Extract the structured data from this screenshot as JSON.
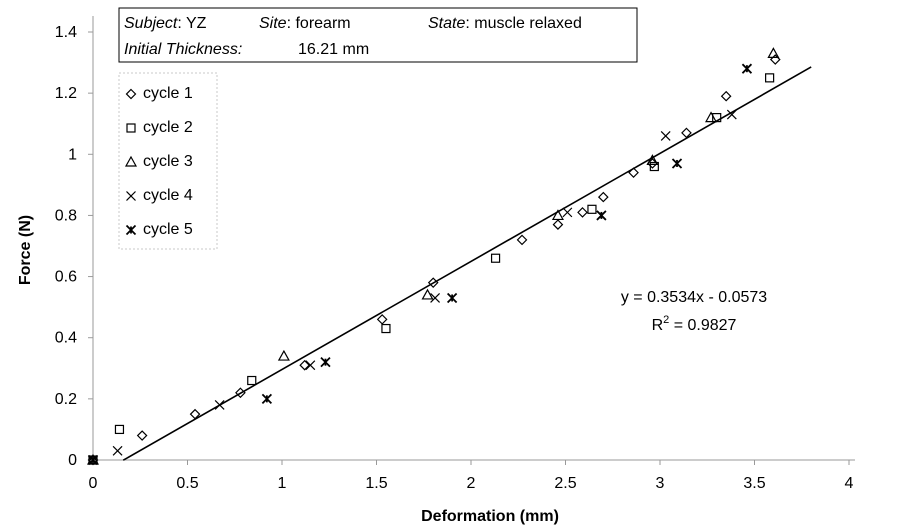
{
  "chart_data": {
    "type": "scatter",
    "xlabel": "Deformation (mm)",
    "ylabel": "Force (N)",
    "xlim": [
      0,
      4
    ],
    "ylim": [
      0,
      1.4
    ],
    "xticks": [
      0,
      0.5,
      1,
      1.5,
      2,
      2.5,
      3,
      3.5,
      4
    ],
    "xtick_labels": [
      "0",
      "0.5",
      "1",
      "1.5",
      "2",
      "2.5",
      "3",
      "3.5",
      "4"
    ],
    "yticks": [
      0,
      0.2,
      0.4,
      0.6,
      0.8,
      1.0,
      1.2,
      1.4
    ],
    "ytick_labels": [
      "0",
      "0.2",
      "0.4",
      "0.6",
      "0.8",
      "1",
      "1.2",
      "1.4"
    ],
    "grid": false,
    "legend_placement": "top-left",
    "info_box": {
      "subject_label": "Subject",
      "subject_value": ": YZ",
      "site_label": "Site",
      "site_value": ": forearm",
      "state_label": "State",
      "state_value": ": muscle relaxed",
      "thickness_label": "Initial Thickness:",
      "thickness_value": "16.21 mm"
    },
    "series": [
      {
        "name": "cycle 1",
        "marker": "diamond",
        "points": [
          [
            0,
            0
          ],
          [
            0.26,
            0.08
          ],
          [
            0.54,
            0.15
          ],
          [
            0.78,
            0.22
          ],
          [
            1.12,
            0.31
          ],
          [
            1.53,
            0.46
          ],
          [
            1.8,
            0.58
          ],
          [
            2.27,
            0.72
          ],
          [
            2.46,
            0.77
          ],
          [
            2.59,
            0.81
          ],
          [
            2.7,
            0.86
          ],
          [
            2.86,
            0.94
          ],
          [
            2.96,
            0.97
          ],
          [
            3.14,
            1.07
          ],
          [
            3.35,
            1.19
          ],
          [
            3.61,
            1.31
          ]
        ]
      },
      {
        "name": "cycle 2",
        "marker": "square",
        "points": [
          [
            0,
            0
          ],
          [
            0.14,
            0.1
          ],
          [
            0.84,
            0.26
          ],
          [
            1.55,
            0.43
          ],
          [
            2.13,
            0.66
          ],
          [
            2.64,
            0.82
          ],
          [
            2.97,
            0.96
          ],
          [
            3.3,
            1.12
          ],
          [
            3.58,
            1.25
          ]
        ]
      },
      {
        "name": "cycle 3",
        "marker": "triangle",
        "points": [
          [
            0,
            0
          ],
          [
            1.01,
            0.34
          ],
          [
            1.77,
            0.54
          ],
          [
            2.46,
            0.8
          ],
          [
            2.96,
            0.98
          ],
          [
            3.27,
            1.12
          ],
          [
            3.6,
            1.33
          ]
        ]
      },
      {
        "name": "cycle 4",
        "marker": "x",
        "points": [
          [
            0,
            0
          ],
          [
            0.13,
            0.03
          ],
          [
            0.67,
            0.18
          ],
          [
            1.15,
            0.31
          ],
          [
            1.81,
            0.53
          ],
          [
            2.51,
            0.81
          ],
          [
            3.03,
            1.06
          ],
          [
            3.38,
            1.13
          ]
        ]
      },
      {
        "name": "cycle 5",
        "marker": "asterisk",
        "points": [
          [
            0,
            0
          ],
          [
            0.92,
            0.2
          ],
          [
            1.23,
            0.32
          ],
          [
            1.9,
            0.53
          ],
          [
            2.69,
            0.8
          ],
          [
            3.09,
            0.97
          ],
          [
            3.46,
            1.28
          ]
        ]
      }
    ],
    "trendline": {
      "equation": "y = 0.3534x - 0.0573",
      "r2_prefix": "R",
      "r2_superscript": "2",
      "r2_value": " = 0.9827",
      "slope": 0.3534,
      "intercept": -0.0573,
      "x_range": [
        0.16,
        3.8
      ]
    }
  }
}
